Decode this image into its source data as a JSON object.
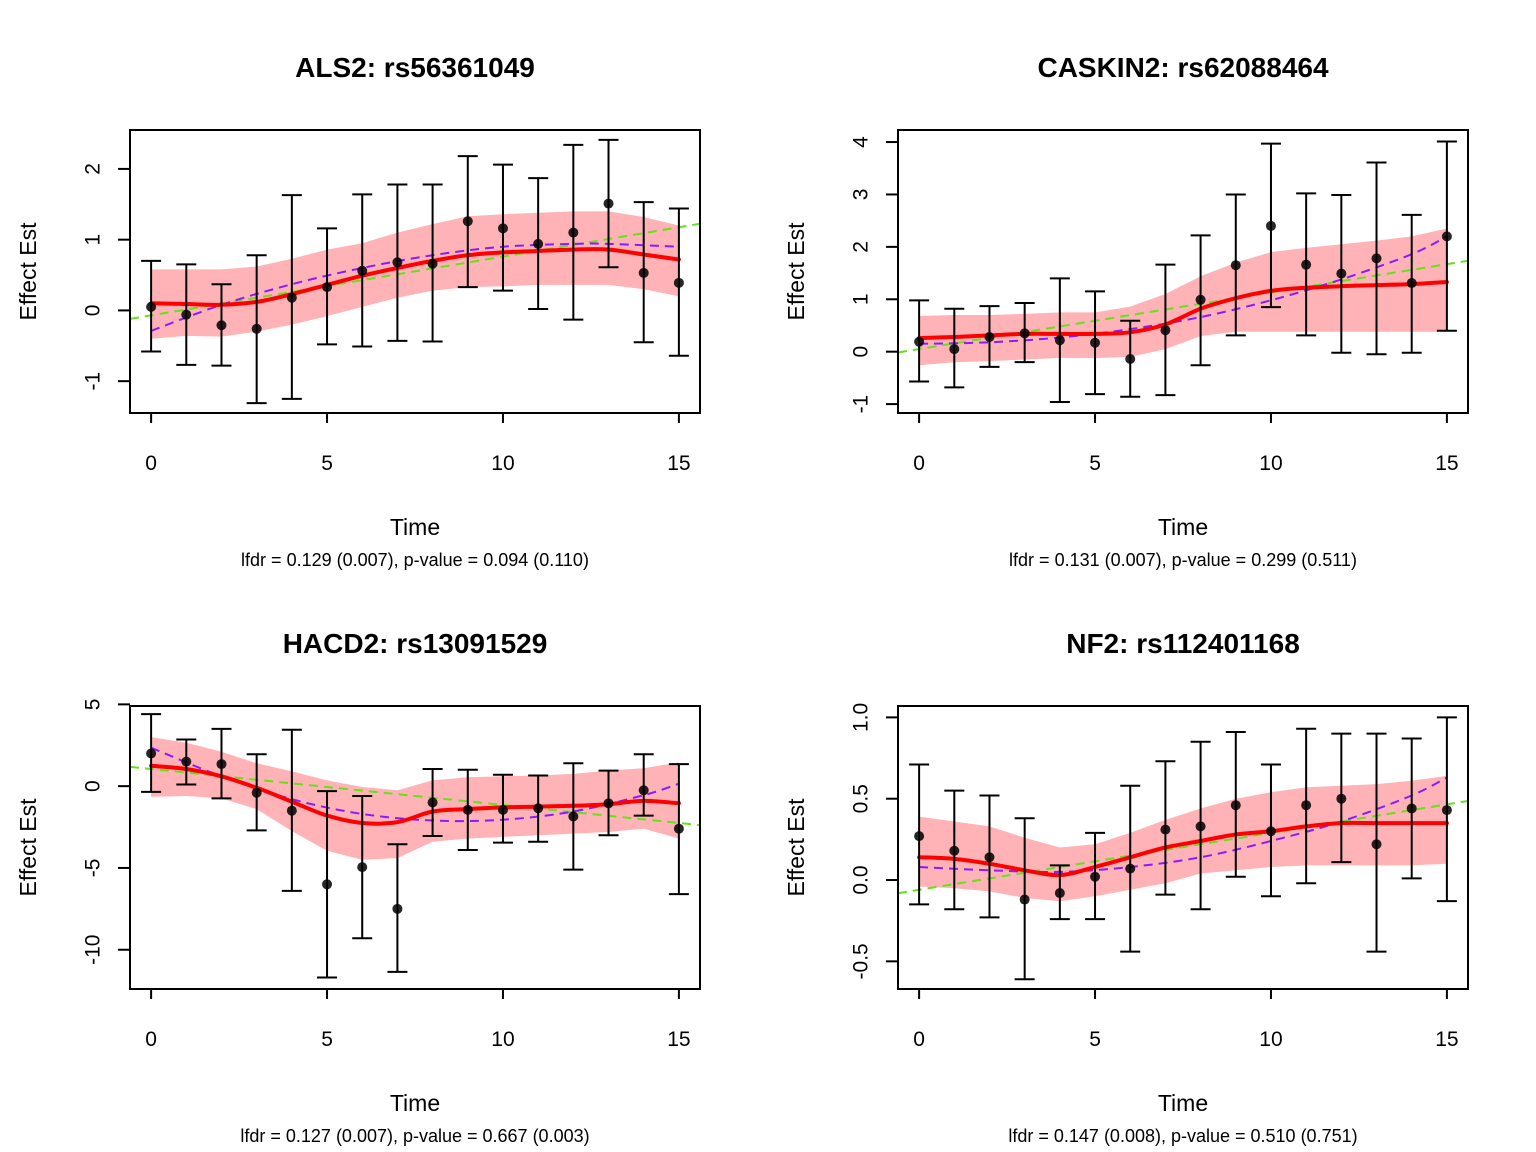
{
  "figure": {
    "colors": {
      "band": "#ffb3b6",
      "smooth": "#ff0000",
      "linear_fit": "#66e01a",
      "quadratic_fit": "#8a1aff",
      "point": "#000000",
      "errorbar": "#000000"
    }
  },
  "chart_data": [
    {
      "type": "line",
      "title": "ALS2: rs56361049",
      "xlabel": "Time",
      "ylabel": "Effect Est",
      "subtitle": "lfdr = 0.129 (0.007), p-value = 0.094 (0.110)",
      "xlim": [
        -0.6,
        15.6
      ],
      "ylim": [
        -1.45,
        2.55
      ],
      "xticks": [
        0,
        5,
        10,
        15
      ],
      "xtick_labels": [
        "0",
        "5",
        "10",
        "15"
      ],
      "yticks": [
        -1,
        0,
        1,
        2
      ],
      "ytick_labels": [
        "-1",
        "0",
        "1",
        "2"
      ],
      "grid": false,
      "x": [
        0,
        1,
        2,
        3,
        4,
        5,
        6,
        7,
        8,
        9,
        10,
        11,
        12,
        13,
        14,
        15
      ],
      "estimates": [
        0.05,
        -0.06,
        -0.21,
        -0.26,
        0.18,
        0.33,
        0.56,
        0.68,
        0.66,
        1.26,
        1.16,
        0.94,
        1.1,
        1.51,
        0.53,
        0.39
      ],
      "ci_lower": [
        -0.58,
        -0.77,
        -0.78,
        -1.31,
        -1.25,
        -0.48,
        -0.51,
        -0.43,
        -0.44,
        0.33,
        0.28,
        0.02,
        -0.13,
        0.61,
        -0.45,
        -0.64
      ],
      "ci_upper": [
        0.7,
        0.65,
        0.37,
        0.78,
        1.63,
        1.16,
        1.64,
        1.78,
        1.78,
        2.18,
        2.06,
        1.87,
        2.34,
        2.41,
        1.53,
        1.44
      ],
      "smooth": [
        0.1,
        0.09,
        0.08,
        0.12,
        0.23,
        0.36,
        0.49,
        0.6,
        0.7,
        0.78,
        0.82,
        0.84,
        0.86,
        0.86,
        0.79,
        0.72
      ],
      "band_lower": [
        -0.4,
        -0.36,
        -0.37,
        -0.3,
        -0.2,
        -0.08,
        0.05,
        0.18,
        0.28,
        0.33,
        0.34,
        0.36,
        0.36,
        0.36,
        0.3,
        0.2
      ],
      "band_upper": [
        0.58,
        0.58,
        0.58,
        0.62,
        0.73,
        0.86,
        0.95,
        1.1,
        1.22,
        1.33,
        1.36,
        1.38,
        1.4,
        1.4,
        1.32,
        1.2
      ],
      "linear_fit": {
        "intercept": -0.07,
        "slope": 0.083,
        "x_range": [
          -0.6,
          15.6
        ]
      },
      "quadratic_fit": {
        "x": [
          0,
          2,
          4,
          6,
          8,
          10,
          12,
          13,
          15
        ],
        "y": [
          -0.29,
          0.08,
          0.37,
          0.6,
          0.78,
          0.9,
          0.94,
          0.94,
          0.9
        ]
      }
    },
    {
      "type": "line",
      "title": "CASKIN2: rs62088464",
      "xlabel": "Time",
      "ylabel": "Effect Est",
      "subtitle": "lfdr = 0.131 (0.007), p-value = 0.299 (0.511)",
      "xlim": [
        -0.6,
        15.6
      ],
      "ylim": [
        -1.17,
        4.23
      ],
      "xticks": [
        0,
        5,
        10,
        15
      ],
      "xtick_labels": [
        "0",
        "5",
        "10",
        "15"
      ],
      "yticks": [
        -1,
        0,
        1,
        2,
        3,
        4
      ],
      "ytick_labels": [
        "-1",
        "0",
        "1",
        "2",
        "3",
        "4"
      ],
      "grid": false,
      "x": [
        0,
        1,
        2,
        3,
        4,
        5,
        6,
        7,
        8,
        9,
        10,
        11,
        12,
        13,
        14,
        15
      ],
      "estimates": [
        0.19,
        0.05,
        0.28,
        0.35,
        0.22,
        0.17,
        -0.14,
        0.41,
        0.99,
        1.65,
        2.4,
        1.66,
        1.49,
        1.78,
        1.31,
        2.2
      ],
      "ci_lower": [
        -0.57,
        -0.68,
        -0.29,
        -0.2,
        -0.96,
        -0.81,
        -0.86,
        -0.83,
        -0.26,
        0.31,
        0.85,
        0.31,
        -0.02,
        -0.05,
        -0.02,
        0.4
      ],
      "ci_upper": [
        0.98,
        0.82,
        0.87,
        0.93,
        1.4,
        1.15,
        0.59,
        1.66,
        2.22,
        3.0,
        3.97,
        3.02,
        2.99,
        3.61,
        2.61,
        4.01
      ],
      "smooth": [
        0.26,
        0.28,
        0.31,
        0.34,
        0.34,
        0.34,
        0.37,
        0.52,
        0.82,
        1.02,
        1.16,
        1.22,
        1.25,
        1.27,
        1.29,
        1.33
      ],
      "band_lower": [
        -0.26,
        -0.2,
        -0.18,
        -0.15,
        -0.12,
        -0.12,
        -0.1,
        0.05,
        0.3,
        0.38,
        0.38,
        0.38,
        0.38,
        0.38,
        0.38,
        0.38
      ],
      "band_upper": [
        0.68,
        0.7,
        0.7,
        0.72,
        0.75,
        0.75,
        0.86,
        1.1,
        1.44,
        1.7,
        1.9,
        1.98,
        2.05,
        2.12,
        2.2,
        2.35
      ],
      "linear_fit": {
        "intercept": 0.05,
        "slope": 0.108,
        "x_range": [
          -0.6,
          15.6
        ]
      },
      "quadratic_fit": {
        "x": [
          0,
          2,
          4,
          6,
          8,
          10,
          12,
          14,
          15
        ],
        "y": [
          0.15,
          0.18,
          0.27,
          0.43,
          0.66,
          0.98,
          1.38,
          1.86,
          2.2
        ]
      }
    },
    {
      "type": "line",
      "title": "HACD2: rs13091529",
      "xlabel": "Time",
      "ylabel": "Effect Est",
      "subtitle": "lfdr = 0.127 (0.007), p-value = 0.667 (0.003)",
      "xlim": [
        -0.6,
        15.6
      ],
      "ylim": [
        -12.4,
        4.9
      ],
      "xticks": [
        0,
        5,
        10,
        15
      ],
      "xtick_labels": [
        "0",
        "5",
        "10",
        "15"
      ],
      "yticks": [
        -10,
        -5,
        0,
        5
      ],
      "ytick_labels": [
        "-10",
        "-5",
        "0",
        "5"
      ],
      "grid": false,
      "x": [
        0,
        1,
        2,
        3,
        4,
        5,
        6,
        7,
        8,
        9,
        10,
        11,
        12,
        13,
        14,
        15
      ],
      "estimates": [
        2.0,
        1.5,
        1.35,
        -0.4,
        -1.5,
        -6.0,
        -4.95,
        -7.5,
        -1.0,
        -1.45,
        -1.45,
        -1.35,
        -1.85,
        -1.05,
        -0.25,
        -2.6
      ],
      "ci_lower": [
        -0.35,
        0.1,
        -0.75,
        -2.7,
        -6.4,
        -11.7,
        -9.3,
        -11.35,
        -3.05,
        -3.9,
        -3.45,
        -3.4,
        -5.1,
        -3.0,
        -1.8,
        -6.6
      ],
      "ci_upper": [
        4.4,
        2.85,
        3.5,
        1.95,
        3.45,
        -0.3,
        -0.6,
        -3.55,
        1.05,
        1.0,
        0.7,
        0.65,
        1.4,
        0.95,
        1.95,
        1.35
      ],
      "smooth": [
        1.25,
        1.05,
        0.6,
        -0.1,
        -0.95,
        -1.8,
        -2.25,
        -2.2,
        -1.55,
        -1.4,
        -1.3,
        -1.25,
        -1.2,
        -1.1,
        -0.9,
        -1.05
      ],
      "band_lower": [
        -0.65,
        -0.6,
        -0.75,
        -1.4,
        -2.75,
        -3.95,
        -4.5,
        -4.4,
        -3.4,
        -3.2,
        -3.1,
        -3.0,
        -2.9,
        -2.8,
        -2.6,
        -3.2
      ],
      "band_upper": [
        3.0,
        2.65,
        2.1,
        1.4,
        0.9,
        0.35,
        -0.05,
        -0.25,
        0.35,
        0.55,
        0.6,
        0.65,
        0.75,
        0.95,
        1.1,
        1.45
      ],
      "linear_fit": {
        "intercept": 1.05,
        "slope": -0.22,
        "x_range": [
          -0.6,
          15.6
        ]
      },
      "quadratic_fit": {
        "x": [
          0,
          2,
          4,
          6,
          8,
          10,
          12,
          14,
          15
        ],
        "y": [
          2.35,
          0.6,
          -0.8,
          -1.7,
          -2.1,
          -2.05,
          -1.55,
          -0.55,
          0.15
        ]
      }
    },
    {
      "type": "line",
      "title": "NF2: rs112401168",
      "xlabel": "Time",
      "ylabel": "Effect Est",
      "subtitle": "lfdr = 0.147 (0.008), p-value = 0.510 (0.751)",
      "xlim": [
        -0.6,
        15.6
      ],
      "ylim": [
        -0.67,
        1.07
      ],
      "xticks": [
        0,
        5,
        10,
        15
      ],
      "xtick_labels": [
        "0",
        "5",
        "10",
        "15"
      ],
      "yticks": [
        -0.5,
        0.0,
        0.5,
        1.0
      ],
      "ytick_labels": [
        "-0.5",
        "0.0",
        "0.5",
        "1.0"
      ],
      "grid": false,
      "x": [
        0,
        1,
        2,
        3,
        4,
        5,
        6,
        7,
        8,
        9,
        10,
        11,
        12,
        13,
        14,
        15
      ],
      "estimates": [
        0.27,
        0.18,
        0.14,
        -0.12,
        -0.08,
        0.02,
        0.07,
        0.31,
        0.33,
        0.46,
        0.3,
        0.46,
        0.5,
        0.22,
        0.44,
        0.43
      ],
      "ci_lower": [
        -0.15,
        -0.18,
        -0.23,
        -0.61,
        -0.24,
        -0.24,
        -0.44,
        -0.09,
        -0.18,
        0.02,
        -0.1,
        -0.02,
        0.11,
        -0.44,
        0.01,
        -0.13
      ],
      "ci_upper": [
        0.71,
        0.55,
        0.52,
        0.38,
        0.09,
        0.29,
        0.58,
        0.73,
        0.85,
        0.91,
        0.71,
        0.93,
        0.9,
        0.9,
        0.87,
        1.0
      ],
      "smooth": [
        0.14,
        0.13,
        0.1,
        0.06,
        0.03,
        0.08,
        0.14,
        0.2,
        0.24,
        0.28,
        0.3,
        0.33,
        0.35,
        0.35,
        0.35,
        0.35
      ],
      "band_lower": [
        -0.04,
        -0.05,
        -0.07,
        -0.11,
        -0.13,
        -0.1,
        -0.06,
        -0.02,
        0.04,
        0.06,
        0.08,
        0.09,
        0.09,
        0.09,
        0.09,
        0.1
      ],
      "band_upper": [
        0.39,
        0.36,
        0.33,
        0.26,
        0.2,
        0.22,
        0.29,
        0.37,
        0.44,
        0.5,
        0.54,
        0.57,
        0.58,
        0.59,
        0.61,
        0.64
      ],
      "linear_fit": {
        "intercept": -0.06,
        "slope": 0.035,
        "x_range": [
          -0.6,
          15.6
        ]
      },
      "quadratic_fit": {
        "x": [
          0,
          2,
          4,
          6,
          8,
          10,
          12,
          14,
          15
        ],
        "y": [
          0.08,
          0.06,
          0.05,
          0.08,
          0.14,
          0.24,
          0.36,
          0.52,
          0.63
        ]
      }
    }
  ]
}
